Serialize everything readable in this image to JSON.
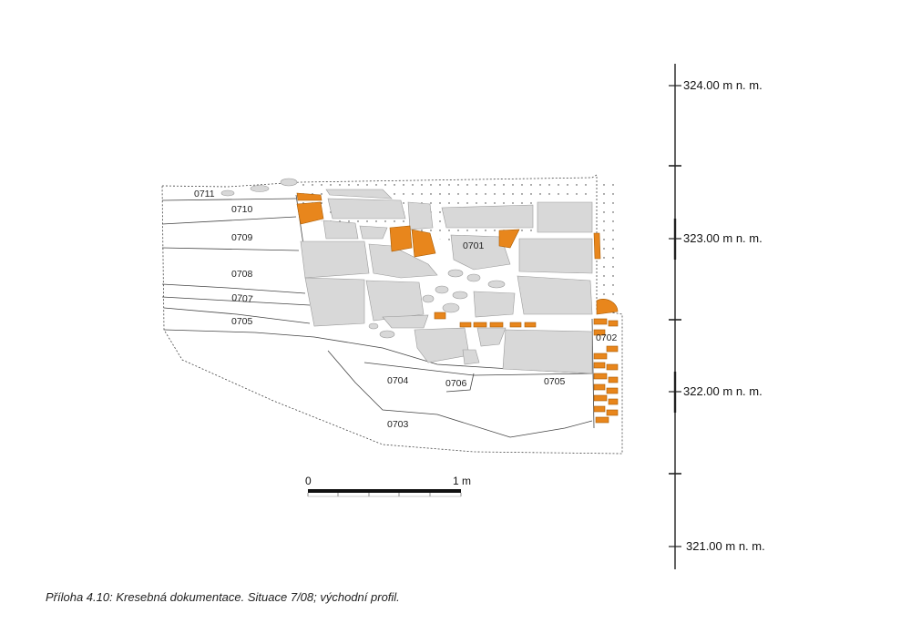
{
  "profile": {
    "layers": {
      "l0701": "0701",
      "l0702": "0702",
      "l0703": "0703",
      "l0704": "0704",
      "l0705a": "0705",
      "l0705b": "0705",
      "l0706": "0706",
      "l0707": "0707",
      "l0708": "0708",
      "l0709": "0709",
      "l0710": "0710",
      "l0711": "0711"
    },
    "colors": {
      "stone": "#d8d8d8",
      "brick": "#e8861c",
      "line": "#444444"
    }
  },
  "elevation_scale": {
    "labels": [
      "324.00 m n. m.",
      "323.00 m n. m.",
      "322.00 m n. m.",
      "321.00 m n. m."
    ]
  },
  "bar_scale": {
    "start_label": "0",
    "end_label": "1 m"
  },
  "caption": "Příloha 4.10: Kresebná dokumentace. Situace 7/08; východní profil."
}
